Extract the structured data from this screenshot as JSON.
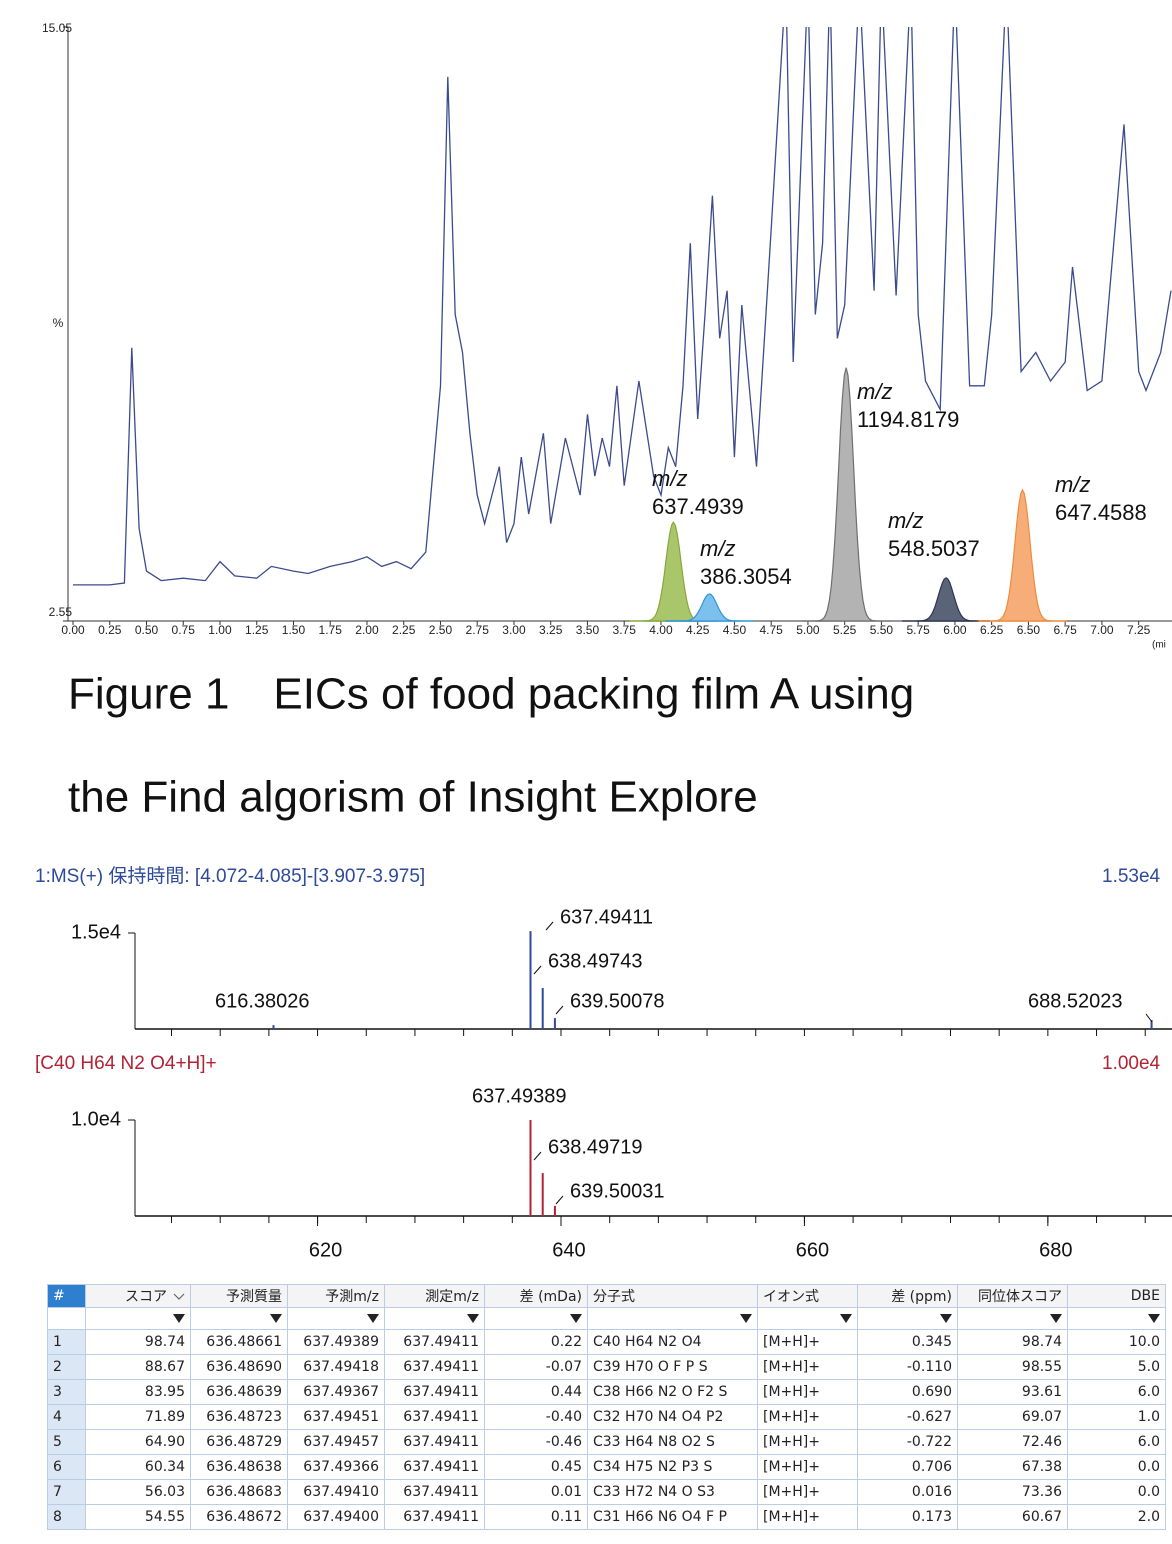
{
  "chart_data": [
    {
      "type": "line",
      "ylabel": "%",
      "xlabel": "(mi",
      "xlim": [
        0,
        7.47
      ],
      "ylim": [
        2.55,
        15.05
      ],
      "yticks": [
        2.55,
        15.05
      ],
      "xticks": [
        {
          "value": 0,
          "label": "0.00"
        },
        0.25,
        {
          "value": 0.5,
          "label": "0.50"
        },
        0.75,
        {
          "value": 1,
          "label": "1.00"
        },
        1.25,
        {
          "value": 1.5,
          "label": "1.50"
        },
        1.75,
        {
          "value": 2,
          "label": "2.00"
        },
        2.25,
        {
          "value": 2.5,
          "label": "2.50"
        },
        2.75,
        {
          "value": 3,
          "label": "3.00"
        },
        3.25,
        {
          "value": 3.5,
          "label": "3.50"
        },
        3.75,
        {
          "value": 4,
          "label": "4.00"
        },
        4.25,
        {
          "value": 4.5,
          "label": "4.50"
        },
        4.75,
        {
          "value": 5,
          "label": "5.00"
        },
        5.25,
        {
          "value": 5.5,
          "label": "5.50"
        },
        5.75,
        {
          "value": 6,
          "label": "6.00"
        },
        6.25,
        {
          "value": 6.5,
          "label": "6.50"
        },
        6.75,
        {
          "value": 7,
          "label": "7.00"
        },
        7.25
      ],
      "series": [
        {
          "color": "#3b4b8c",
          "x": [
            0,
            0.25,
            0.35,
            0.4,
            0.45,
            0.5,
            0.6,
            0.75,
            0.9,
            1.0,
            1.1,
            1.25,
            1.35,
            1.5,
            1.6,
            1.75,
            1.9,
            2.0,
            2.1,
            2.2,
            2.3,
            2.4,
            2.5,
            2.55,
            2.6,
            2.65,
            2.7,
            2.75,
            2.8,
            2.9,
            2.95,
            3.0,
            3.05,
            3.1,
            3.2,
            3.25,
            3.35,
            3.45,
            3.5,
            3.55,
            3.6,
            3.65,
            3.7,
            3.75,
            3.85,
            3.95,
            4.0,
            4.05,
            4.1,
            4.15,
            4.2,
            4.25,
            4.3,
            4.35,
            4.4,
            4.45,
            4.5,
            4.55,
            4.65,
            4.75,
            4.85,
            4.9,
            5.0,
            5.05,
            5.1,
            5.15,
            5.2,
            5.25,
            5.35,
            5.45,
            5.5,
            5.6,
            5.7,
            5.75,
            5.8,
            5.9,
            6.0,
            6.1,
            6.2,
            6.25,
            6.35,
            6.45,
            6.55,
            6.65,
            6.75,
            6.8,
            6.9,
            7.0,
            7.15,
            7.25,
            7.3,
            7.4,
            7.47
          ],
          "values": [
            3.31,
            3.31,
            3.35,
            8.3,
            4.5,
            3.6,
            3.4,
            3.45,
            3.4,
            3.8,
            3.5,
            3.45,
            3.7,
            3.6,
            3.55,
            3.7,
            3.8,
            3.9,
            3.7,
            3.8,
            3.65,
            4.0,
            7.5,
            14.0,
            9.0,
            8.2,
            6.5,
            5.2,
            4.6,
            5.8,
            4.2,
            4.6,
            6.0,
            4.8,
            6.5,
            4.6,
            6.4,
            5.2,
            6.9,
            5.6,
            6.4,
            5.8,
            7.5,
            5.4,
            7.6,
            5.6,
            5.2,
            6.2,
            5.8,
            7.5,
            10.5,
            6.8,
            9.0,
            11.5,
            8.5,
            9.5,
            6.0,
            9.2,
            5.8,
            10.8,
            16,
            8.0,
            16,
            9.0,
            10.5,
            16,
            8.5,
            9.2,
            16,
            9.5,
            16,
            9.4,
            16,
            9.0,
            7.6,
            7.0,
            16,
            7.5,
            7.5,
            9.0,
            16,
            7.8,
            8.2,
            7.6,
            8.0,
            10.0,
            7.4,
            7.6,
            13.0,
            7.8,
            7.4,
            8.2,
            9.5
          ]
        }
      ],
      "eics": [
        {
          "name": "m/z",
          "mz": 637.4939,
          "rt": 4.085,
          "height": 4.63,
          "color": "#86a83a",
          "fill": "#a9c76a"
        },
        {
          "name": "m/z",
          "mz": 386.3054,
          "rt": 4.33,
          "height": 3.12,
          "color": "#2f95dc",
          "fill": "#7cc0ee"
        },
        {
          "name": "m/z",
          "mz": 1194.8179,
          "rt": 5.26,
          "height": 7.88,
          "color": "#6f6f6f",
          "fill": "#b3b3b3"
        },
        {
          "name": "m/z",
          "mz": 548.5037,
          "rt": 5.94,
          "height": 3.46,
          "color": "#2d3650",
          "fill": "#5a6378"
        },
        {
          "name": "m/z",
          "mz": 647.4588,
          "rt": 6.46,
          "height": 5.31,
          "color": "#f08a3c",
          "fill": "#f6ad78"
        }
      ]
    },
    {
      "type": "spectrum",
      "title": "1:MS(+) 保持時間: [4.072-4.085]-[3.907-3.975]",
      "max_label": "1.53e4",
      "color": "#2e4a9a",
      "xlim": [
        605,
        690.2
      ],
      "ylim": [
        0,
        15300
      ],
      "yticks": [
        {
          "value": 15000,
          "label": "1.5e4"
        }
      ],
      "xminorticks": [
        608,
        612,
        616,
        620,
        624,
        628,
        632,
        636,
        640,
        644,
        648,
        652,
        656,
        660,
        664,
        668,
        672,
        676,
        680,
        684,
        688
      ],
      "x": [
        616.38026,
        637.49411,
        638.49743,
        639.50078,
        688.52023
      ],
      "values": [
        600,
        15300,
        6400,
        1700,
        1400
      ]
    },
    {
      "type": "spectrum",
      "title": "[C40 H64 N2 O4+H]+",
      "max_label": "1.00e4",
      "color": "#b22234",
      "xlim": [
        605,
        690.2
      ],
      "ylim": [
        0,
        10000
      ],
      "yticks": [
        {
          "value": 10000,
          "label": "1.0e4"
        }
      ],
      "xticks": [
        620,
        640,
        660,
        680
      ],
      "xminorticks": [
        608,
        612,
        616,
        620,
        624,
        628,
        632,
        636,
        640,
        644,
        648,
        652,
        656,
        660,
        664,
        668,
        672,
        676,
        680,
        684,
        688
      ],
      "x": [
        637.49389,
        638.49719,
        639.50031
      ],
      "values": [
        10000,
        4470,
        1060
      ]
    }
  ],
  "caption": {
    "lines": [
      "Figure 1　EICs of  food packing film A using",
      "the Find algorism of Insight Explore"
    ]
  },
  "table": {
    "header": [
      "#",
      "スコア",
      "予測質量",
      "予測m/z",
      "測定m/z",
      "差 (mDa)",
      "分子式",
      "イオン式",
      "差 (ppm)",
      "同位体スコア",
      "DBE"
    ],
    "rows": [
      [
        "1",
        "98.74",
        "636.48661",
        "637.49389",
        "637.49411",
        "0.22",
        "C40 H64 N2 O4",
        "[M+H]+",
        "0.345",
        "98.74",
        "10.0"
      ],
      [
        "2",
        "88.67",
        "636.48690",
        "637.49418",
        "637.49411",
        "-0.07",
        "C39 H70 O F P S",
        "[M+H]+",
        "-0.110",
        "98.55",
        "5.0"
      ],
      [
        "3",
        "83.95",
        "636.48639",
        "637.49367",
        "637.49411",
        "0.44",
        "C38 H66 N2 O F2 S",
        "[M+H]+",
        "0.690",
        "93.61",
        "6.0"
      ],
      [
        "4",
        "71.89",
        "636.48723",
        "637.49451",
        "637.49411",
        "-0.40",
        "C32 H70 N4 O4 P2",
        "[M+H]+",
        "-0.627",
        "69.07",
        "1.0"
      ],
      [
        "5",
        "64.90",
        "636.48729",
        "637.49457",
        "637.49411",
        "-0.46",
        "C33 H64 N8 O2 S",
        "[M+H]+",
        "-0.722",
        "72.46",
        "6.0"
      ],
      [
        "6",
        "60.34",
        "636.48638",
        "637.49366",
        "637.49411",
        "0.45",
        "C34 H75 N2 P3 S",
        "[M+H]+",
        "0.706",
        "67.38",
        "0.0"
      ],
      [
        "7",
        "56.03",
        "636.48683",
        "637.49410",
        "637.49411",
        "0.01",
        "C33 H72 N4 O S3",
        "[M+H]+",
        "0.016",
        "73.36",
        "0.0"
      ],
      [
        "8",
        "54.55",
        "636.48672",
        "637.49400",
        "637.49411",
        "0.11",
        "C31 H66 N6 O4 F P",
        "[M+H]+",
        "0.173",
        "60.67",
        "2.0"
      ]
    ]
  }
}
